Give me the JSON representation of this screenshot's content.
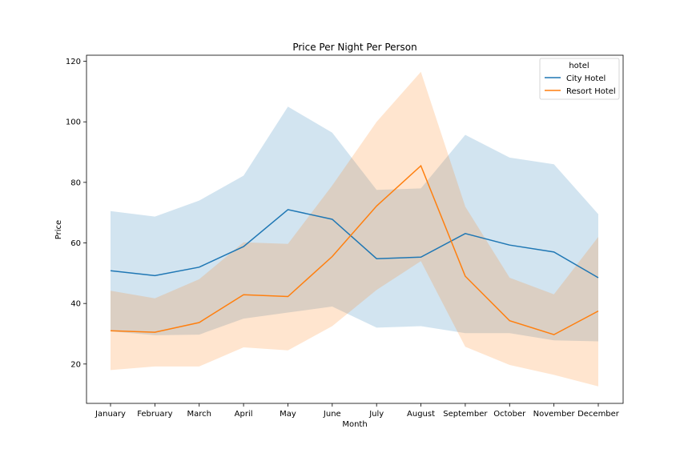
{
  "chart_data": {
    "type": "line",
    "title": "Price Per Night Per Person",
    "xlabel": "Month",
    "ylabel": "Price",
    "categories": [
      "January",
      "February",
      "March",
      "April",
      "May",
      "June",
      "July",
      "August",
      "September",
      "October",
      "November",
      "December"
    ],
    "ylim": [
      7,
      122
    ],
    "yticks": [
      20,
      40,
      60,
      80,
      100,
      120
    ],
    "grid": false,
    "legend": {
      "title": "hotel",
      "placement": "top-right"
    },
    "series": [
      {
        "name": "City Hotel",
        "color": "#1f77b4",
        "values": [
          50.8,
          49.2,
          52.0,
          58.8,
          71.0,
          67.8,
          54.8,
          55.3,
          63.1,
          59.3,
          57.0,
          48.5
        ],
        "ci_upper": [
          70.5,
          68.7,
          74.0,
          82.2,
          105.0,
          96.4,
          77.5,
          78.0,
          95.7,
          88.2,
          86.0,
          69.5
        ],
        "ci_lower": [
          30.8,
          29.5,
          29.7,
          35.0,
          37.0,
          39.0,
          32.0,
          32.5,
          30.2,
          30.2,
          27.8,
          27.5
        ]
      },
      {
        "name": "Resort Hotel",
        "color": "#ff7f0e",
        "values": [
          31.0,
          30.5,
          33.7,
          42.9,
          42.3,
          55.5,
          72.2,
          85.5,
          49.0,
          34.3,
          29.7,
          37.5
        ],
        "ci_upper": [
          44.2,
          41.7,
          48.0,
          60.2,
          59.7,
          79.0,
          100.0,
          116.5,
          72.0,
          48.5,
          43.0,
          62.0
        ],
        "ci_lower": [
          18.0,
          19.2,
          19.2,
          25.5,
          24.5,
          32.5,
          44.5,
          54.0,
          25.7,
          19.7,
          16.4,
          12.6
        ]
      }
    ]
  }
}
